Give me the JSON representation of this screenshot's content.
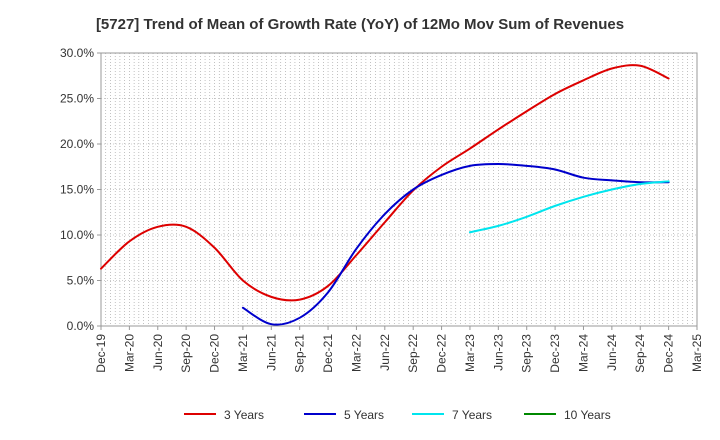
{
  "chart_data": {
    "type": "line",
    "title": "[5727]  Trend of Mean of Growth Rate (YoY) of 12Mo Mov Sum of Revenues",
    "xlabel": "",
    "ylabel": "",
    "ylim": [
      0,
      30
    ],
    "y_ticks": [
      0,
      5,
      10,
      15,
      20,
      25,
      30
    ],
    "y_tick_labels": [
      "0.0%",
      "5.0%",
      "10.0%",
      "15.0%",
      "20.0%",
      "25.0%",
      "30.0%"
    ],
    "categories": [
      "Dec-19",
      "Mar-20",
      "Jun-20",
      "Sep-20",
      "Dec-20",
      "Mar-21",
      "Jun-21",
      "Sep-21",
      "Dec-21",
      "Mar-22",
      "Jun-22",
      "Sep-22",
      "Dec-22",
      "Mar-23",
      "Jun-23",
      "Sep-23",
      "Dec-23",
      "Mar-24",
      "Jun-24",
      "Sep-24",
      "Dec-24",
      "Mar-25"
    ],
    "grid": true,
    "legend_position": "bottom",
    "series": [
      {
        "name": "3 Years",
        "color": "#dd0000",
        "values": [
          6.3,
          9.3,
          10.9,
          10.9,
          8.6,
          5.0,
          3.2,
          2.9,
          4.4,
          7.8,
          11.4,
          14.9,
          17.5,
          19.5,
          21.6,
          23.6,
          25.5,
          27.0,
          28.3,
          28.6,
          27.2,
          null
        ]
      },
      {
        "name": "5 Years",
        "color": "#0000cc",
        "values": [
          null,
          null,
          null,
          null,
          null,
          2.0,
          0.2,
          0.9,
          3.7,
          8.5,
          12.3,
          15.0,
          16.6,
          17.6,
          17.8,
          17.6,
          17.2,
          16.3,
          16.0,
          15.8,
          15.8,
          null
        ]
      },
      {
        "name": "7 Years",
        "color": "#00e5ee",
        "values": [
          null,
          null,
          null,
          null,
          null,
          null,
          null,
          null,
          null,
          null,
          null,
          null,
          null,
          10.3,
          11.0,
          12.0,
          13.2,
          14.2,
          15.0,
          15.6,
          15.9,
          null
        ]
      },
      {
        "name": "10 Years",
        "color": "#008800",
        "values": [
          null,
          null,
          null,
          null,
          null,
          null,
          null,
          null,
          null,
          null,
          null,
          null,
          null,
          null,
          null,
          null,
          null,
          null,
          null,
          null,
          null,
          null
        ]
      }
    ]
  }
}
